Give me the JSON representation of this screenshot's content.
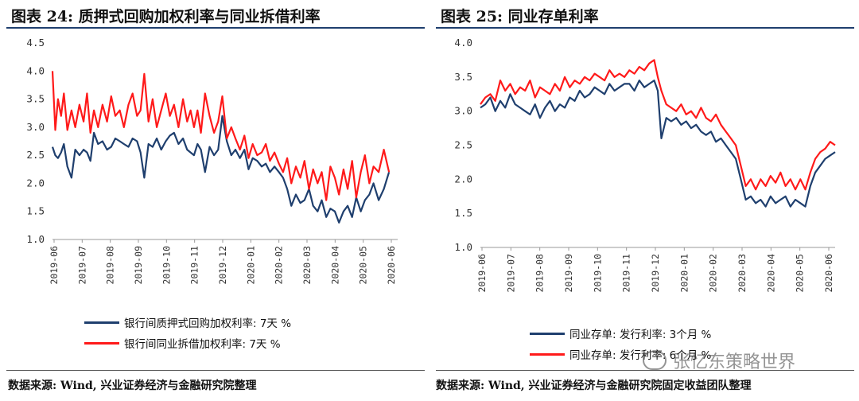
{
  "colors": {
    "series_blue": "#1f3f6e",
    "series_red": "#ff1a1a",
    "rule": "#1f3f6e"
  },
  "left": {
    "title": "图表 24:  质押式回购加权利率与同业拆借利率",
    "source": "数据来源:  Wind, 兴业证券经济与金融研究院整理",
    "legend": [
      "银行间质押式回购加权利率: 7天  %",
      "银行间同业拆借加权利率: 7天  %"
    ]
  },
  "right": {
    "title": "图表 25:  同业存单利率",
    "source": "数据来源:  Wind, 兴业证券经济与金融研究院固定收益团队整理",
    "legend": [
      "同业存单: 发行利率: 3个月  %",
      "同业存单: 发行利率: 6个月  %"
    ]
  },
  "watermark": "张忆东策略世界",
  "chart_data": [
    {
      "type": "line",
      "title": "图表 24:  质押式回购加权利率与同业拆借利率",
      "x_ticks": [
        "2019-06",
        "2019-07",
        "2019-08",
        "2019-09",
        "2019-10",
        "2019-11",
        "2019-12",
        "2020-01",
        "2020-02",
        "2020-03",
        "2020-04",
        "2020-05",
        "2020-06"
      ],
      "ylim": [
        1.0,
        4.5
      ],
      "y_ticks": [
        "1.0",
        "1.5",
        "2.0",
        "2.5",
        "3.0",
        "3.5",
        "4.0",
        "4.5"
      ],
      "legend_position": "bottom",
      "series": [
        {
          "name": "银行间质押式回购加权利率: 7天  %",
          "color": "#1f3f6e",
          "values": [
            2.65,
            2.5,
            2.45,
            2.55,
            2.7,
            2.3,
            2.1,
            2.6,
            2.5,
            2.6,
            2.55,
            2.4,
            2.9,
            2.7,
            2.75,
            2.6,
            2.65,
            2.8,
            2.75,
            2.7,
            2.65,
            2.8,
            2.75,
            2.55,
            2.1,
            2.7,
            2.65,
            2.8,
            2.6,
            2.75,
            2.85,
            2.9,
            2.7,
            2.8,
            2.6,
            2.55,
            2.5,
            2.7,
            2.6,
            2.2,
            2.65,
            2.5,
            2.6,
            3.2,
            2.75,
            2.5,
            2.6,
            2.45,
            2.6,
            2.25,
            2.45,
            2.4,
            2.3,
            2.35,
            2.2,
            2.3,
            2.2,
            2.1,
            1.9,
            1.6,
            1.8,
            1.65,
            1.7,
            1.9,
            1.6,
            1.5,
            1.7,
            1.4,
            1.55,
            1.5,
            1.3,
            1.5,
            1.6,
            1.4,
            1.75,
            1.5,
            1.7,
            1.8,
            2.0,
            1.7,
            1.9,
            2.2
          ],
          "x_positions": [
            0.0,
            0.008,
            0.016,
            0.025,
            0.033,
            0.043,
            0.055,
            0.066,
            0.078,
            0.09,
            0.1,
            0.11,
            0.12,
            0.132,
            0.145,
            0.158,
            0.17,
            0.182,
            0.195,
            0.207,
            0.22,
            0.232,
            0.245,
            0.255,
            0.266,
            0.278,
            0.29,
            0.302,
            0.315,
            0.328,
            0.34,
            0.352,
            0.365,
            0.378,
            0.39,
            0.4,
            0.41,
            0.42,
            0.43,
            0.442,
            0.455,
            0.468,
            0.48,
            0.492,
            0.505,
            0.518,
            0.53,
            0.543,
            0.556,
            0.568,
            0.58,
            0.593,
            0.606,
            0.618,
            0.63,
            0.643,
            0.656,
            0.668,
            0.68,
            0.692,
            0.705,
            0.718,
            0.73,
            0.743,
            0.755,
            0.768,
            0.78,
            0.793,
            0.805,
            0.818,
            0.83,
            0.843,
            0.855,
            0.868,
            0.88,
            0.893,
            0.905,
            0.918,
            0.93,
            0.945,
            0.96,
            0.975
          ]
        },
        {
          "name": "银行间同业拆借加权利率: 7天  %",
          "color": "#ff1a1a",
          "values": [
            4.0,
            2.95,
            3.5,
            3.2,
            3.6,
            2.95,
            3.3,
            3.0,
            3.4,
            3.1,
            3.6,
            2.9,
            3.3,
            3.0,
            3.4,
            3.1,
            3.55,
            3.2,
            3.3,
            3.0,
            3.4,
            3.6,
            3.2,
            3.3,
            3.95,
            3.1,
            3.5,
            3.0,
            3.3,
            3.6,
            3.2,
            3.4,
            3.0,
            3.5,
            3.1,
            3.3,
            3.0,
            3.3,
            2.9,
            3.6,
            3.2,
            2.9,
            3.1,
            3.55,
            2.8,
            3.0,
            2.8,
            2.6,
            2.85,
            2.45,
            2.7,
            2.5,
            2.55,
            2.7,
            2.4,
            2.55,
            2.35,
            2.2,
            2.45,
            2.0,
            2.3,
            2.1,
            2.4,
            1.9,
            2.25,
            2.0,
            2.2,
            1.7,
            2.3,
            2.1,
            1.8,
            2.25,
            1.9,
            2.4,
            1.75,
            2.2,
            2.5,
            2.0,
            2.3,
            2.2,
            2.6,
            2.2
          ],
          "x_positions": [
            0.0,
            0.008,
            0.016,
            0.025,
            0.033,
            0.043,
            0.055,
            0.066,
            0.078,
            0.09,
            0.1,
            0.11,
            0.12,
            0.132,
            0.145,
            0.158,
            0.17,
            0.182,
            0.195,
            0.207,
            0.22,
            0.232,
            0.245,
            0.255,
            0.266,
            0.278,
            0.29,
            0.302,
            0.315,
            0.328,
            0.34,
            0.352,
            0.365,
            0.378,
            0.39,
            0.4,
            0.41,
            0.42,
            0.43,
            0.442,
            0.455,
            0.468,
            0.48,
            0.492,
            0.505,
            0.518,
            0.53,
            0.543,
            0.556,
            0.568,
            0.58,
            0.593,
            0.606,
            0.618,
            0.63,
            0.643,
            0.656,
            0.668,
            0.68,
            0.692,
            0.705,
            0.718,
            0.73,
            0.743,
            0.755,
            0.768,
            0.78,
            0.793,
            0.805,
            0.818,
            0.83,
            0.843,
            0.855,
            0.868,
            0.88,
            0.893,
            0.905,
            0.918,
            0.93,
            0.945,
            0.96,
            0.975
          ]
        }
      ]
    },
    {
      "type": "line",
      "title": "图表 25:  同业存单利率",
      "x_ticks": [
        "2019-06",
        "2019-07",
        "2019-08",
        "2019-09",
        "2019-10",
        "2019-11",
        "2019-12",
        "2020-01",
        "2020-02",
        "2020-03",
        "2020-04",
        "2020-05",
        "2020-06"
      ],
      "ylim": [
        1.0,
        4.0
      ],
      "y_ticks": [
        "1.0",
        "1.5",
        "2.0",
        "2.5",
        "3.0",
        "3.5",
        "4.0"
      ],
      "legend_position": "bottom",
      "series": [
        {
          "name": "同业存单: 发行利率: 3个月  %",
          "color": "#1f3f6e",
          "values": [
            3.05,
            3.1,
            3.2,
            3.0,
            3.15,
            3.05,
            3.25,
            3.1,
            3.05,
            3.0,
            2.95,
            3.1,
            2.9,
            3.05,
            3.15,
            3.0,
            3.1,
            3.05,
            3.2,
            3.15,
            3.3,
            3.2,
            3.25,
            3.35,
            3.3,
            3.25,
            3.4,
            3.3,
            3.35,
            3.4,
            3.4,
            3.3,
            3.45,
            3.35,
            3.4,
            3.45,
            3.3,
            2.6,
            2.9,
            2.85,
            2.9,
            2.8,
            2.85,
            2.75,
            2.8,
            2.7,
            2.65,
            2.7,
            2.55,
            2.6,
            2.5,
            2.4,
            2.3,
            2.0,
            1.7,
            1.75,
            1.65,
            1.7,
            1.6,
            1.75,
            1.65,
            1.7,
            1.75,
            1.6,
            1.7,
            1.65,
            1.6,
            1.9,
            2.1,
            2.2,
            2.3,
            2.35,
            2.4
          ],
          "x_positions": [
            0.0,
            0.014,
            0.028,
            0.042,
            0.056,
            0.07,
            0.084,
            0.098,
            0.112,
            0.126,
            0.14,
            0.154,
            0.168,
            0.182,
            0.196,
            0.21,
            0.224,
            0.238,
            0.252,
            0.266,
            0.28,
            0.294,
            0.308,
            0.322,
            0.336,
            0.35,
            0.364,
            0.378,
            0.392,
            0.406,
            0.42,
            0.434,
            0.448,
            0.462,
            0.476,
            0.49,
            0.5,
            0.51,
            0.524,
            0.538,
            0.552,
            0.566,
            0.58,
            0.594,
            0.608,
            0.622,
            0.636,
            0.65,
            0.664,
            0.678,
            0.692,
            0.706,
            0.72,
            0.734,
            0.748,
            0.762,
            0.776,
            0.79,
            0.804,
            0.818,
            0.832,
            0.846,
            0.86,
            0.874,
            0.888,
            0.902,
            0.916,
            0.93,
            0.944,
            0.958,
            0.972,
            0.986,
            1.0
          ]
        },
        {
          "name": "同业存单: 发行利率: 6个月  %",
          "color": "#ff1a1a",
          "values": [
            3.1,
            3.2,
            3.25,
            3.15,
            3.45,
            3.3,
            3.4,
            3.25,
            3.35,
            3.3,
            3.45,
            3.2,
            3.35,
            3.3,
            3.25,
            3.4,
            3.3,
            3.5,
            3.35,
            3.45,
            3.4,
            3.5,
            3.45,
            3.55,
            3.5,
            3.45,
            3.6,
            3.5,
            3.55,
            3.5,
            3.6,
            3.55,
            3.65,
            3.6,
            3.7,
            3.75,
            3.5,
            3.3,
            3.1,
            3.05,
            3.0,
            3.1,
            2.95,
            3.0,
            2.9,
            3.05,
            2.9,
            2.85,
            2.95,
            2.8,
            2.7,
            2.6,
            2.5,
            2.2,
            1.9,
            2.0,
            1.85,
            2.0,
            1.9,
            2.05,
            1.95,
            2.1,
            1.9,
            2.0,
            1.85,
            2.0,
            1.85,
            2.1,
            2.3,
            2.4,
            2.45,
            2.55,
            2.5
          ],
          "x_positions": [
            0.0,
            0.014,
            0.028,
            0.042,
            0.056,
            0.07,
            0.084,
            0.098,
            0.112,
            0.126,
            0.14,
            0.154,
            0.168,
            0.182,
            0.196,
            0.21,
            0.224,
            0.238,
            0.252,
            0.266,
            0.28,
            0.294,
            0.308,
            0.322,
            0.336,
            0.35,
            0.364,
            0.378,
            0.392,
            0.406,
            0.42,
            0.434,
            0.448,
            0.462,
            0.476,
            0.49,
            0.5,
            0.51,
            0.524,
            0.538,
            0.552,
            0.566,
            0.58,
            0.594,
            0.608,
            0.622,
            0.636,
            0.65,
            0.664,
            0.678,
            0.692,
            0.706,
            0.72,
            0.734,
            0.748,
            0.762,
            0.776,
            0.79,
            0.804,
            0.818,
            0.832,
            0.846,
            0.86,
            0.874,
            0.888,
            0.902,
            0.916,
            0.93,
            0.944,
            0.958,
            0.972,
            0.986,
            1.0
          ]
        }
      ]
    }
  ]
}
